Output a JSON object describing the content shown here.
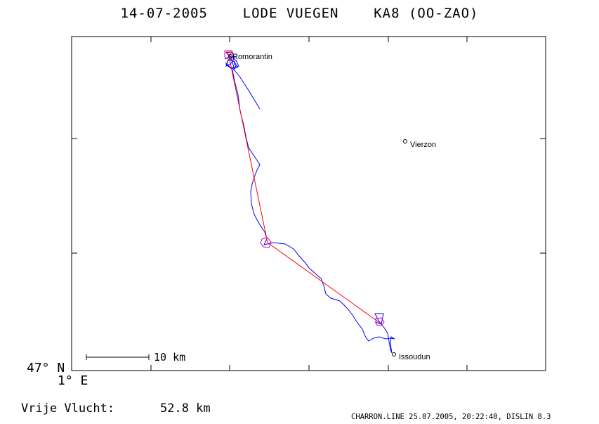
{
  "header": {
    "title": "14-07-2005    LODE VUEGEN    KA8 (OO-ZAO)"
  },
  "axes": {
    "lat_label": "47° N",
    "lon_label": "1° E"
  },
  "scale_bar": {
    "label": "10 km"
  },
  "cities": [
    {
      "name": "Romorantin"
    },
    {
      "name": "Vierzon"
    },
    {
      "name": "Issoudun"
    }
  ],
  "flight": {
    "distance_label": "Vrije Vlucht:",
    "distance_value": "52.8 km"
  },
  "footer": {
    "text": "CHARRON.LINE 25.07.2005, 20:22:40, DISLIN 8.3"
  },
  "colors": {
    "track": "#0000ff",
    "route": "#ff0000",
    "turnpoint": "#cc00cc",
    "frame": "#000000"
  }
}
